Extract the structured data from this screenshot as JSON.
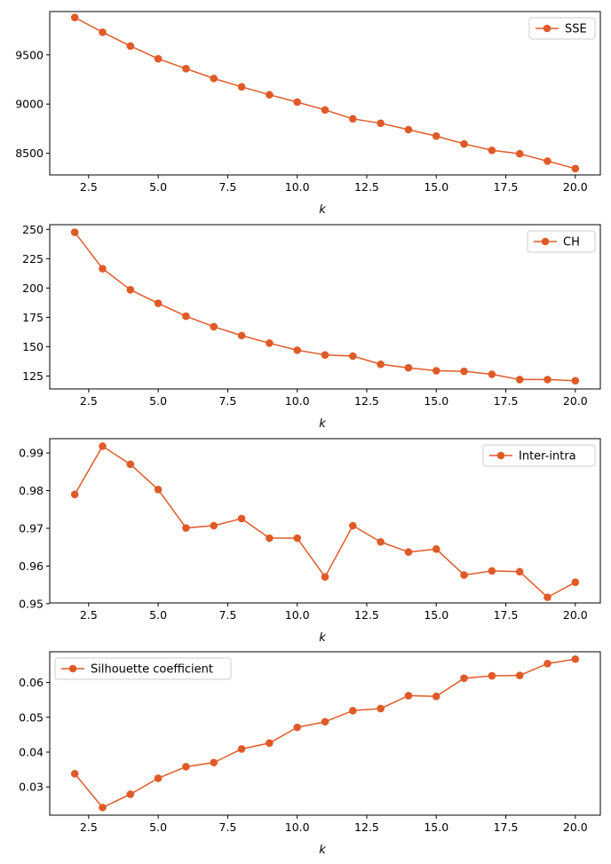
{
  "series_color": "#e05a28",
  "chart_data": [
    {
      "type": "line",
      "xlabel": "k",
      "ylabel": "",
      "xlim": [
        1.1,
        20.9
      ],
      "ylim": [
        8280,
        9940
      ],
      "xticks": [
        2.5,
        5.0,
        7.5,
        10.0,
        12.5,
        15.0,
        17.5,
        20.0
      ],
      "xtick_labels": [
        "2.5",
        "5.0",
        "7.5",
        "10.0",
        "12.5",
        "15.0",
        "17.5",
        "20.0"
      ],
      "yticks": [
        8500,
        9000,
        9500
      ],
      "ytick_labels": [
        "8500",
        "9000",
        "9500"
      ],
      "legend_position": "top-right",
      "grid": false,
      "series": [
        {
          "name": "SSE",
          "x": [
            2,
            3,
            4,
            5,
            6,
            7,
            8,
            9,
            10,
            11,
            12,
            13,
            14,
            15,
            16,
            17,
            18,
            19,
            20
          ],
          "y": [
            9880,
            9730,
            9590,
            9460,
            9360,
            9260,
            9175,
            9095,
            9020,
            8940,
            8850,
            8805,
            8740,
            8675,
            8595,
            8530,
            8495,
            8420,
            8345
          ]
        }
      ]
    },
    {
      "type": "line",
      "xlabel": "k",
      "ylabel": "",
      "xlim": [
        1.1,
        20.9
      ],
      "ylim": [
        114,
        254
      ],
      "xticks": [
        2.5,
        5.0,
        7.5,
        10.0,
        12.5,
        15.0,
        17.5,
        20.0
      ],
      "xtick_labels": [
        "2.5",
        "5.0",
        "7.5",
        "10.0",
        "12.5",
        "15.0",
        "17.5",
        "20.0"
      ],
      "yticks": [
        125,
        150,
        175,
        200,
        225,
        250
      ],
      "ytick_labels": [
        "125",
        "150",
        "175",
        "200",
        "225",
        "250"
      ],
      "legend_position": "top-right",
      "grid": false,
      "series": [
        {
          "name": "CH",
          "x": [
            2,
            3,
            4,
            5,
            6,
            7,
            8,
            9,
            10,
            11,
            12,
            13,
            14,
            15,
            16,
            17,
            18,
            19,
            20
          ],
          "y": [
            247.5,
            216.5,
            198.5,
            187,
            176,
            167,
            159.5,
            153,
            147,
            143,
            142,
            135,
            132,
            129.5,
            129,
            126.5,
            122,
            122,
            121
          ]
        }
      ]
    },
    {
      "type": "line",
      "xlabel": "k",
      "ylabel": "",
      "xlim": [
        1.1,
        20.9
      ],
      "ylim": [
        0.9502,
        0.9938
      ],
      "xticks": [
        2.5,
        5.0,
        7.5,
        10.0,
        12.5,
        15.0,
        17.5,
        20.0
      ],
      "xtick_labels": [
        "2.5",
        "5.0",
        "7.5",
        "10.0",
        "12.5",
        "15.0",
        "17.5",
        "20.0"
      ],
      "yticks": [
        0.95,
        0.96,
        0.97,
        0.98,
        0.99
      ],
      "ytick_labels": [
        "0.95",
        "0.96",
        "0.97",
        "0.98",
        "0.99"
      ],
      "legend_position": "top-right",
      "grid": false,
      "series": [
        {
          "name": "Inter-intra",
          "x": [
            2,
            3,
            4,
            5,
            6,
            7,
            8,
            9,
            10,
            11,
            12,
            13,
            14,
            15,
            16,
            17,
            18,
            19,
            20
          ],
          "y": [
            0.979,
            0.9918,
            0.987,
            0.9803,
            0.9701,
            0.9707,
            0.9726,
            0.9674,
            0.9674,
            0.9571,
            0.9707,
            0.9664,
            0.9637,
            0.9645,
            0.9576,
            0.9587,
            0.9585,
            0.9517,
            0.9557
          ]
        }
      ]
    },
    {
      "type": "line",
      "xlabel": "k",
      "ylabel": "",
      "xlim": [
        1.1,
        20.9
      ],
      "ylim": [
        0.0219,
        0.0688
      ],
      "xticks": [
        2.5,
        5.0,
        7.5,
        10.0,
        12.5,
        15.0,
        17.5,
        20.0
      ],
      "xtick_labels": [
        "2.5",
        "5.0",
        "7.5",
        "10.0",
        "12.5",
        "15.0",
        "17.5",
        "20.0"
      ],
      "yticks": [
        0.03,
        0.04,
        0.05,
        0.06
      ],
      "ytick_labels": [
        "0.03",
        "0.04",
        "0.05",
        "0.06"
      ],
      "legend_position": "top-left",
      "grid": false,
      "series": [
        {
          "name": "Silhouette coefficient",
          "x": [
            2,
            3,
            4,
            5,
            6,
            7,
            8,
            9,
            10,
            11,
            12,
            13,
            14,
            15,
            16,
            17,
            18,
            19,
            20
          ],
          "y": [
            0.0338,
            0.0241,
            0.0279,
            0.0325,
            0.0358,
            0.037,
            0.0409,
            0.0426,
            0.0471,
            0.0487,
            0.0519,
            0.0525,
            0.0562,
            0.056,
            0.0612,
            0.0619,
            0.062,
            0.0654,
            0.0667
          ]
        }
      ]
    }
  ]
}
